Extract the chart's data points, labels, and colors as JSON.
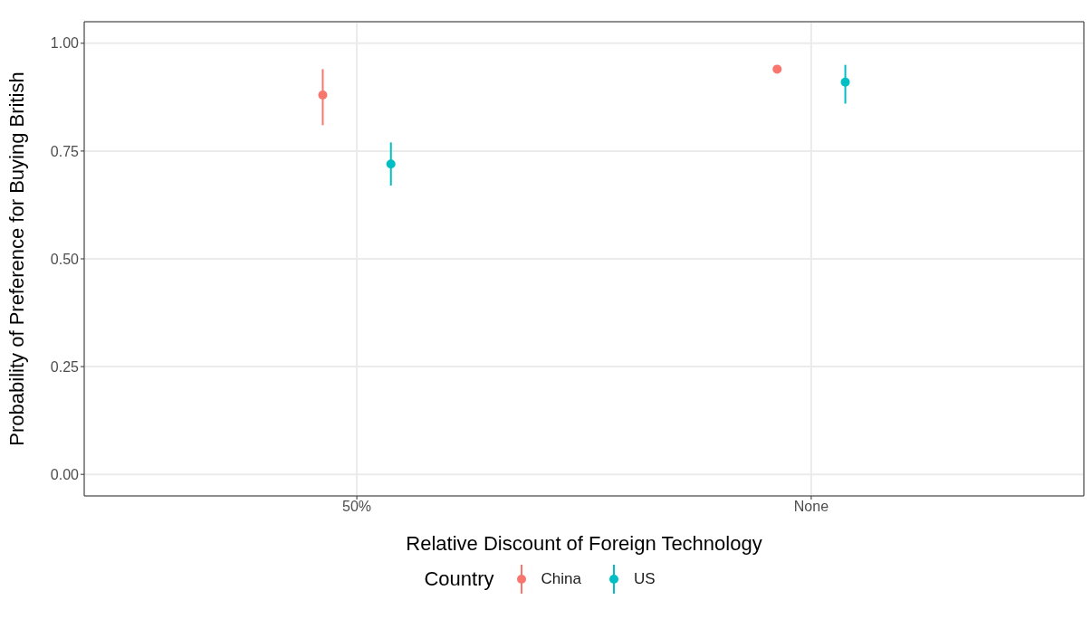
{
  "chart_data": {
    "type": "scatter",
    "xlabel": "Relative Discount of Foreign Technology",
    "ylabel": "Probability of Preference for Buying British",
    "legend_title": "Country",
    "categories": [
      "50%",
      "None"
    ],
    "series": [
      {
        "name": "China",
        "color": "#f8766d",
        "values": [
          0.88,
          0.94
        ],
        "errors": [
          [
            0.81,
            0.94
          ],
          null
        ]
      },
      {
        "name": "US",
        "color": "#00bfc4",
        "values": [
          0.72,
          0.91
        ],
        "errors": [
          [
            0.67,
            0.77
          ],
          [
            0.86,
            0.95
          ]
        ]
      }
    ],
    "ylim": [
      -0.05,
      1.05
    ],
    "yticks": [
      {
        "value": 0,
        "label": "0.00"
      },
      {
        "value": 0.25,
        "label": "0.25"
      },
      {
        "value": 0.5,
        "label": "0.50"
      },
      {
        "value": 0.75,
        "label": "0.75"
      },
      {
        "value": 1,
        "label": "1.00"
      }
    ],
    "grid": true,
    "legend": "bottom",
    "marker": "circle"
  }
}
